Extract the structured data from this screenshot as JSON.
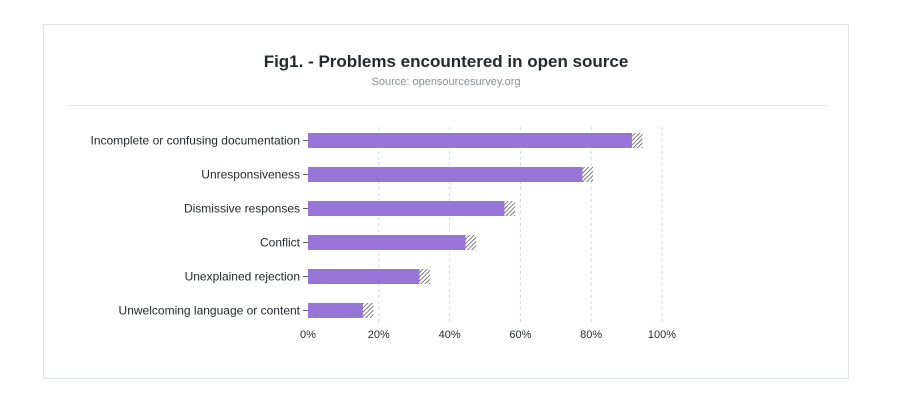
{
  "header": {
    "title": "Fig1. - Problems encountered in open source",
    "subtitle": "Source: opensourcesurvey.org"
  },
  "colors": {
    "bar": "#9775d8",
    "hatch": "#444444",
    "grid": "#d9d9d9",
    "axis": "#666666"
  },
  "chart_data": {
    "type": "bar",
    "orientation": "horizontal",
    "title": "Fig1. - Problems encountered in open source",
    "subtitle": "Source: opensourcesurvey.org",
    "categories": [
      "Incomplete or confusing documentation",
      "Unresponsiveness",
      "Dismissive responses",
      "Conflict",
      "Unexplained rejection",
      "Unwelcoming language or content"
    ],
    "values": [
      93,
      79,
      57,
      46,
      33,
      17
    ],
    "error_band": 1.5,
    "xlim": [
      0,
      100
    ],
    "xticks": [
      "0%",
      "20%",
      "40%",
      "60%",
      "80%",
      "100%"
    ],
    "xtick_values": [
      0,
      20,
      40,
      60,
      80,
      100
    ],
    "grid": true,
    "legend": "none"
  }
}
